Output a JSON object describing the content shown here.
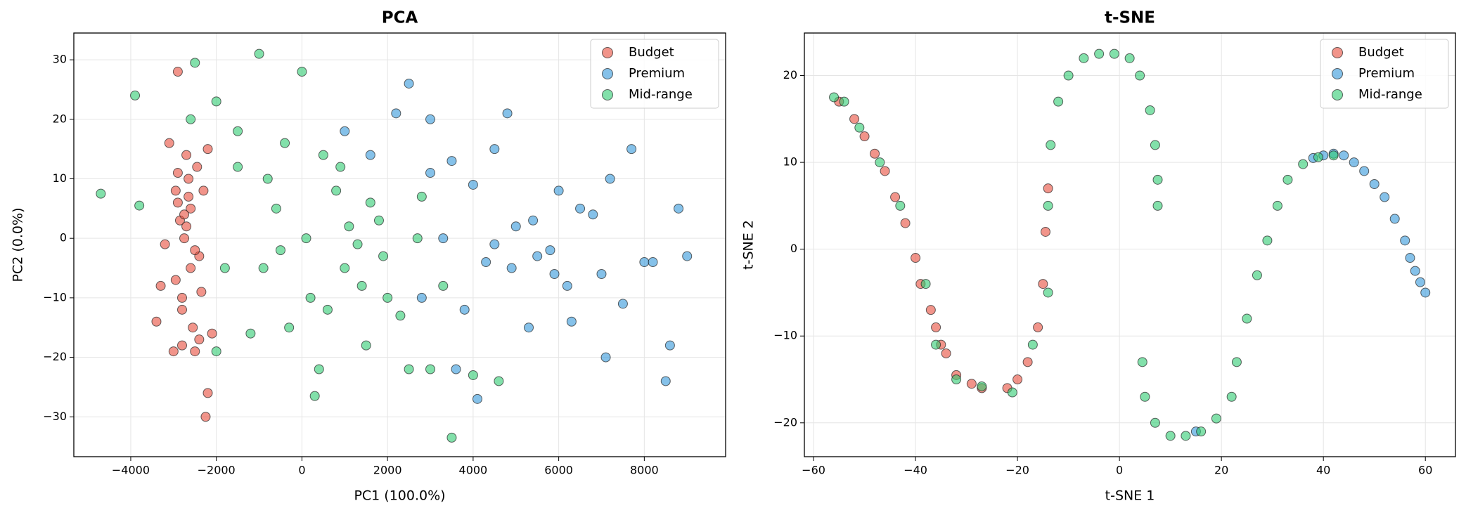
{
  "chart_data": [
    {
      "type": "scatter",
      "title": "PCA",
      "xlabel": "PC1 (100.0%)",
      "ylabel": "PC2 (0.0%)",
      "xlim": [
        -5330,
        9900
      ],
      "ylim": [
        -36.7,
        34.5
      ],
      "xticks": [
        {
          "value": -4000,
          "label": "−4000"
        },
        {
          "value": -2000,
          "label": "−2000"
        },
        0,
        2000,
        4000,
        6000,
        8000
      ],
      "yticks": [
        {
          "value": -30,
          "label": "−30"
        },
        {
          "value": -20,
          "label": "−20"
        },
        {
          "value": -10,
          "label": "−10"
        },
        0,
        10,
        20,
        30
      ],
      "grid": true,
      "legend": "upper right",
      "series": [
        {
          "name": "Budget",
          "color": "#e74c3c",
          "x": [
            -2900,
            -2700,
            -2500,
            -3100,
            -2300,
            -2800,
            -2600,
            -2400,
            -3000,
            -2200,
            -2750,
            -2650,
            -2950,
            -2550,
            -3200,
            -2450,
            -2850,
            -2350,
            -2900,
            -2600,
            -2800,
            -2700,
            -3400,
            -2100,
            -2250,
            -2950,
            -2500,
            -2800,
            -2650,
            -3300,
            -2200,
            -2750,
            -2400,
            -2900
          ],
          "values": [
            28,
            14,
            -19,
            16,
            8,
            -12,
            5,
            -3,
            -19,
            -26,
            0,
            10,
            -7,
            -15,
            -1,
            12,
            3,
            -9,
            6,
            -5,
            -18,
            2,
            -14,
            -16,
            -30,
            8,
            -2,
            -10,
            7,
            -8,
            15,
            4,
            -17,
            11
          ]
        },
        {
          "name": "Premium",
          "color": "#3498db",
          "x": [
            2500,
            3000,
            3500,
            4000,
            4500,
            5000,
            5500,
            6000,
            6500,
            7000,
            7500,
            8000,
            8500,
            9000,
            2800,
            3300,
            3800,
            4300,
            4800,
            5300,
            5800,
            6300,
            6800,
            7200,
            7700,
            8200,
            8800,
            3600,
            4100,
            5900,
            7100,
            8600,
            1000,
            1600,
            2200,
            4900,
            6200,
            3000,
            4500,
            5400
          ],
          "values": [
            26,
            20,
            13,
            9,
            15,
            2,
            -3,
            8,
            5,
            -6,
            -11,
            -4,
            -24,
            -3,
            -10,
            0,
            -12,
            -4,
            21,
            -15,
            -2,
            -14,
            4,
            10,
            15,
            -4,
            5,
            -22,
            -27,
            -6,
            -20,
            -18,
            18,
            14,
            21,
            -5,
            -8,
            11,
            -1,
            3
          ]
        },
        {
          "name": "Mid-range",
          "color": "#2ecc71",
          "x": [
            -4700,
            -3900,
            -3800,
            -2500,
            -2000,
            -1500,
            -1000,
            -800,
            -500,
            0,
            300,
            500,
            1000,
            1500,
            2000,
            2500,
            3000,
            3500,
            4000,
            4600,
            -1800,
            -1200,
            -600,
            200,
            800,
            1300,
            1800,
            2300,
            2800,
            -300,
            400,
            900,
            1400,
            1900,
            -1500,
            -900,
            600,
            1100,
            2700,
            -2600,
            -2000,
            3300,
            -400,
            1600,
            100
          ],
          "values": [
            7.5,
            24,
            5.5,
            29.5,
            23,
            18,
            31,
            10,
            -2,
            28,
            -26.5,
            14,
            -5,
            -18,
            -10,
            -22,
            -22,
            -33.5,
            -23,
            -24,
            -5,
            -16,
            5,
            -10,
            8,
            -1,
            3,
            -13,
            7,
            -15,
            -22,
            12,
            -8,
            -3,
            12,
            -5,
            -12,
            2,
            0,
            20,
            -19,
            -8,
            16,
            6,
            0
          ]
        }
      ]
    },
    {
      "type": "scatter",
      "title": "t-SNE",
      "xlabel": "t-SNE 1",
      "ylabel": "t-SNE 2",
      "xlim": [
        -61.8,
        65.9
      ],
      "ylim": [
        -23.9,
        24.9
      ],
      "xticks": [
        {
          "value": -60,
          "label": "−60"
        },
        {
          "value": -40,
          "label": "−40"
        },
        {
          "value": -20,
          "label": "−20"
        },
        0,
        20,
        40,
        60
      ],
      "yticks": [
        {
          "value": -20,
          "label": "−20"
        },
        {
          "value": -10,
          "label": "−10"
        },
        0,
        10,
        20
      ],
      "grid": true,
      "legend": "upper right",
      "series": [
        {
          "name": "Budget",
          "color": "#e74c3c",
          "x": [
            -55,
            -52,
            -50,
            -48,
            -46,
            -44,
            -42,
            -40,
            -39,
            -37,
            -36,
            -35,
            -34,
            -32,
            -29,
            -27,
            -22,
            -20,
            -18,
            -16,
            -15,
            -14.5,
            -14
          ],
          "values": [
            17,
            15,
            13,
            11,
            9,
            6,
            3,
            -1,
            -4,
            -7,
            -9,
            -11,
            -12,
            -14.5,
            -15.5,
            -16,
            -16,
            -15,
            -13,
            -9,
            -4,
            2,
            7
          ]
        },
        {
          "name": "Premium",
          "color": "#3498db",
          "x": [
            40,
            42,
            44,
            46,
            48,
            50,
            52,
            54,
            56,
            57,
            58,
            59,
            60,
            38,
            15
          ],
          "values": [
            10.8,
            11,
            10.8,
            10,
            9,
            7.5,
            6,
            3.5,
            1,
            -1,
            -2.5,
            -3.8,
            -5,
            10.5,
            -21
          ]
        },
        {
          "name": "Mid-range",
          "color": "#2ecc71",
          "x": [
            -56,
            -54,
            -51,
            -47,
            -43,
            -38,
            -36,
            -32,
            -27,
            -21,
            -17,
            -14,
            -14,
            -13.5,
            -12,
            -10,
            -7,
            -4,
            -1,
            2,
            4,
            6,
            7,
            7.5,
            7.5,
            4.5,
            5,
            7,
            10,
            13,
            16,
            19,
            22,
            23,
            25,
            27,
            29,
            31,
            33,
            36,
            39,
            42
          ],
          "values": [
            17.5,
            17,
            14,
            10,
            5,
            -4,
            -11,
            -15,
            -15.8,
            -16.5,
            -11,
            -5,
            5,
            12,
            17,
            20,
            22,
            22.5,
            22.5,
            22,
            20,
            16,
            12,
            8,
            5,
            -13,
            -17,
            -20,
            -21.5,
            -21.5,
            -21,
            -19.5,
            -17,
            -13,
            -8,
            -3,
            1,
            5,
            8,
            9.8,
            10.6,
            10.8
          ]
        }
      ]
    }
  ]
}
